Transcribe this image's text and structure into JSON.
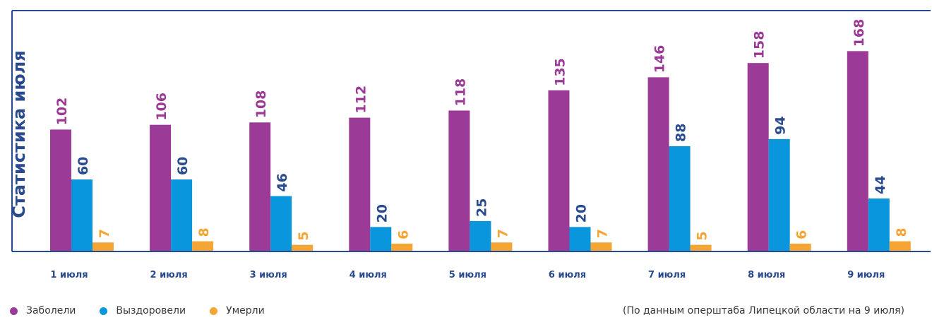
{
  "chart_data": {
    "type": "bar",
    "title": "Статистика июля",
    "categories": [
      "1 июля",
      "2 июля",
      "3 июля",
      "4 июля",
      "5 июля",
      "6 июля",
      "7 июля",
      "8 июля",
      "9 июля"
    ],
    "series": [
      {
        "name": "Заболели",
        "color": "#9b3b97",
        "label_color": "#9b3b97",
        "values": [
          102,
          106,
          108,
          112,
          118,
          135,
          146,
          158,
          168
        ]
      },
      {
        "name": "Выздоровели",
        "color": "#0a96dc",
        "label_color": "#2a4a8f",
        "values": [
          60,
          60,
          46,
          20,
          25,
          20,
          88,
          94,
          44
        ]
      },
      {
        "name": "Умерли",
        "color": "#f5a534",
        "label_color": "#f5a534",
        "values": [
          7,
          8,
          5,
          6,
          7,
          7,
          5,
          6,
          8
        ]
      }
    ],
    "ylim": [
      0,
      170
    ],
    "grid": false,
    "legend_position": "bottom-left",
    "frame_color": "#2a4a8f",
    "category_label_color": "#2a4a8f"
  },
  "source_note": "(По данным оперштаба Липецкой области на 9 июля)"
}
